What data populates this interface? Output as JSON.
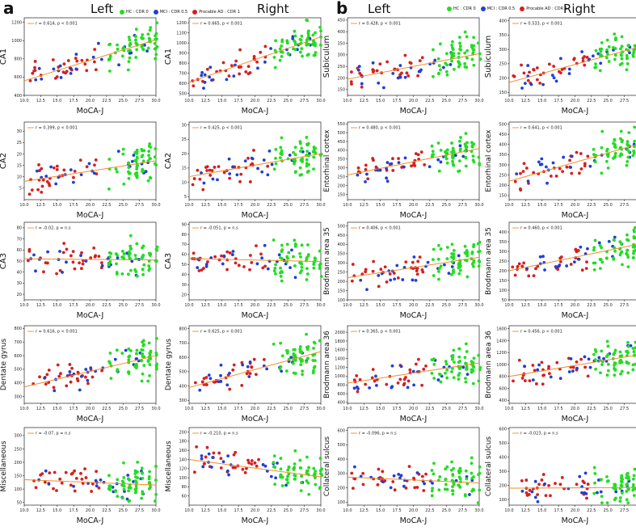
{
  "panel_labels": {
    "a": "a",
    "b": "b"
  },
  "side_labels": {
    "left": "Left",
    "right": "Right"
  },
  "legend": [
    {
      "label": "HC : CDR 0",
      "color": "#22dd22"
    },
    {
      "label": "MCI : CDR 0.5",
      "color": "#1f3fd6"
    },
    {
      "label": "Procable AD : CDR 1",
      "color": "#d61f1f"
    }
  ],
  "colors": {
    "hc": "#22dd22",
    "mci": "#1f3fd6",
    "ad": "#d61f1f",
    "fit": "#f28c28"
  },
  "x_axis": {
    "label": "MoCA-J",
    "ticks": [
      "10.0",
      "12.5",
      "15.0",
      "17.5",
      "20.0",
      "22.5",
      "25.0",
      "27.5",
      "30.0"
    ],
    "range": [
      10,
      30
    ]
  },
  "chart_data": [
    {
      "type": "scatter",
      "panel": "a",
      "side": "Left",
      "region": "CA1",
      "ylabel": "CA1",
      "legend_text": "r = 0.614, p < 0.001",
      "ylim": [
        400,
        1250
      ],
      "yticks": [
        400,
        600,
        800,
        1000,
        1200
      ],
      "fit": [
        [
          10,
          560
        ],
        [
          30,
          1010
        ]
      ],
      "seed": 11
    },
    {
      "type": "scatter",
      "panel": "a",
      "side": "Right",
      "region": "CA1",
      "ylabel": "CA1",
      "legend_text": "r = 0.665, p < 0.001",
      "ylim": [
        480,
        1250
      ],
      "yticks": [
        500,
        600,
        700,
        800,
        900,
        1000,
        1100,
        1200
      ],
      "fit": [
        [
          10,
          610
        ],
        [
          30,
          1060
        ]
      ],
      "seed": 12
    },
    {
      "type": "scatter",
      "panel": "b",
      "side": "Left",
      "region": "Subiculum",
      "ylabel": "Subiculum",
      "legend_text": "r = 0.428, p < 0.001",
      "ylim": [
        125,
        460
      ],
      "yticks": [
        150,
        200,
        250,
        300,
        350,
        400,
        450
      ],
      "fit": [
        [
          10,
          195
        ],
        [
          30,
          305
        ]
      ],
      "seed": 13
    },
    {
      "type": "scatter",
      "panel": "b",
      "side": "Right",
      "region": "Subiculum",
      "ylabel": "Subiculum",
      "legend_text": "r = 0.533, p < 0.001",
      "ylim": [
        140,
        410
      ],
      "yticks": [
        150,
        200,
        250,
        300,
        350,
        400
      ],
      "fit": [
        [
          10,
          185
        ],
        [
          30,
          310
        ]
      ],
      "seed": 14
    },
    {
      "type": "scatter",
      "panel": "a",
      "side": "Left",
      "region": "CA2",
      "ylabel": "CA2",
      "legend_text": "r = 0.399, p < 0.001",
      "ylim": [
        0,
        34
      ],
      "yticks": [
        5,
        10,
        15,
        20,
        25,
        30
      ],
      "fit": [
        [
          10,
          8
        ],
        [
          30,
          17
        ]
      ],
      "seed": 21
    },
    {
      "type": "scatter",
      "panel": "a",
      "side": "Right",
      "region": "CA2",
      "ylabel": "CA2",
      "legend_text": "r = 0.425, p < 0.001",
      "ylim": [
        4,
        31
      ],
      "yticks": [
        5,
        10,
        15,
        20,
        25,
        30
      ],
      "fit": [
        [
          10,
          12
        ],
        [
          30,
          20
        ]
      ],
      "seed": 22
    },
    {
      "type": "scatter",
      "panel": "b",
      "side": "Left",
      "region": "Entorhinal cortex",
      "ylabel": "Entorhinal cortex",
      "legend_text": "r = 0.480, p < 0.001",
      "ylim": [
        120,
        560
      ],
      "yticks": [
        150,
        200,
        250,
        300,
        350,
        400,
        450,
        500,
        550
      ],
      "fit": [
        [
          10,
          260
        ],
        [
          30,
          410
        ]
      ],
      "seed": 23
    },
    {
      "type": "scatter",
      "panel": "b",
      "side": "Right",
      "region": "Entorhinal cortex",
      "ylabel": "Entorhinal cortex",
      "legend_text": "r = 0.641, p < 0.001",
      "ylim": [
        130,
        510
      ],
      "yticks": [
        150,
        200,
        250,
        300,
        350,
        400,
        450,
        500
      ],
      "fit": [
        [
          10,
          220
        ],
        [
          30,
          405
        ]
      ],
      "seed": 24
    },
    {
      "type": "scatter",
      "panel": "a",
      "side": "Left",
      "region": "CA3",
      "ylabel": "CA3",
      "legend_text": "r = -0.02, p = n.s",
      "ylim": [
        15,
        85
      ],
      "yticks": [
        20,
        30,
        40,
        50,
        60,
        70,
        80
      ],
      "fit": [
        [
          10,
          52
        ],
        [
          30,
          51
        ]
      ],
      "seed": 31
    },
    {
      "type": "scatter",
      "panel": "a",
      "side": "Right",
      "region": "CA3",
      "ylabel": "CA3",
      "legend_text": "r = -0.051, p = n.s",
      "ylim": [
        15,
        92
      ],
      "yticks": [
        20,
        30,
        40,
        50,
        60,
        70,
        80,
        90
      ],
      "fit": [
        [
          10,
          56
        ],
        [
          30,
          53
        ]
      ],
      "seed": 32
    },
    {
      "type": "scatter",
      "panel": "b",
      "side": "Left",
      "region": "Brodmann area 35",
      "ylabel": "Brodmann area 35",
      "legend_text": "r = 0.406, p < 0.001",
      "ylim": [
        100,
        520
      ],
      "yticks": [
        100,
        150,
        200,
        250,
        300,
        350,
        400,
        450,
        500
      ],
      "fit": [
        [
          10,
          220
        ],
        [
          30,
          330
        ]
      ],
      "seed": 33
    },
    {
      "type": "scatter",
      "panel": "b",
      "side": "Right",
      "region": "Brodmann area 35",
      "ylabel": "Brodmann area 35",
      "legend_text": "r = 0.460, p < 0.001",
      "ylim": [
        50,
        450
      ],
      "yticks": [
        50,
        100,
        150,
        200,
        250,
        300,
        350,
        400
      ],
      "fit": [
        [
          10,
          200
        ],
        [
          30,
          340
        ]
      ],
      "seed": 34
    },
    {
      "type": "scatter",
      "panel": "a",
      "side": "Left",
      "region": "Dentate gyrus",
      "ylabel": "Dentate gyrus",
      "legend_text": "r = 0.616, p < 0.001",
      "ylim": [
        250,
        820
      ],
      "yticks": [
        300,
        400,
        500,
        600,
        700,
        800
      ],
      "fit": [
        [
          10,
          370
        ],
        [
          30,
          600
        ]
      ],
      "seed": 41
    },
    {
      "type": "scatter",
      "panel": "a",
      "side": "Right",
      "region": "Dentate gyrus",
      "ylabel": "Dentate gyrus",
      "legend_text": "r = 0.625, p < 0.001",
      "ylim": [
        280,
        820
      ],
      "yticks": [
        300,
        400,
        500,
        600,
        700,
        800
      ],
      "fit": [
        [
          10,
          390
        ],
        [
          30,
          640
        ]
      ],
      "seed": 42
    },
    {
      "type": "scatter",
      "panel": "b",
      "side": "Left",
      "region": "Brodmann area 36",
      "ylabel": "Brodmann area 36",
      "legend_text": "r = 0.365, p < 0.001",
      "ylim": [
        380,
        2150
      ],
      "yticks": [
        400,
        600,
        800,
        1000,
        1200,
        1400,
        1600,
        1800,
        2000
      ],
      "fit": [
        [
          10,
          840
        ],
        [
          30,
          1300
        ]
      ],
      "seed": 43
    },
    {
      "type": "scatter",
      "panel": "b",
      "side": "Right",
      "region": "Brodmann area 36",
      "ylabel": "Brodmann area 36",
      "legend_text": "r = 0.456, p < 0.001",
      "ylim": [
        350,
        1650
      ],
      "yticks": [
        400,
        600,
        800,
        1000,
        1200,
        1400,
        1600
      ],
      "fit": [
        [
          10,
          800
        ],
        [
          30,
          1170
        ]
      ],
      "seed": 44
    },
    {
      "type": "scatter",
      "panel": "a",
      "side": "Left",
      "region": "Miscellaneous",
      "ylabel": "Miscellaneous",
      "legend_text": "r = -0.07, p = n.s",
      "ylim": [
        40,
        330
      ],
      "yticks": [
        50,
        100,
        150,
        200,
        250,
        300
      ],
      "fit": [
        [
          10,
          135
        ],
        [
          30,
          115
        ]
      ],
      "seed": 51
    },
    {
      "type": "scatter",
      "panel": "a",
      "side": "Right",
      "region": "Miscellaneous",
      "ylabel": "Miscellaneous",
      "legend_text": "r = -0.210, p = n.s",
      "ylim": [
        40,
        210
      ],
      "yticks": [
        60,
        80,
        100,
        120,
        140,
        160,
        180,
        200
      ],
      "fit": [
        [
          10,
          140
        ],
        [
          30,
          102
        ]
      ],
      "seed": 52
    },
    {
      "type": "scatter",
      "panel": "b",
      "side": "Left",
      "region": "Collateral sulcus",
      "ylabel": "Collateral sulcus",
      "legend_text": "r = -0.096, p = n.s",
      "ylim": [
        80,
        620
      ],
      "yticks": [
        100,
        200,
        300,
        400,
        500,
        600
      ],
      "fit": [
        [
          10,
          275
        ],
        [
          30,
          235
        ]
      ],
      "seed": 53
    },
    {
      "type": "scatter",
      "panel": "b",
      "side": "Right",
      "region": "Collateral sulcus",
      "ylabel": "Collateral sulcus",
      "legend_text": "r = -0.023, p = n.s",
      "ylim": [
        60,
        610
      ],
      "yticks": [
        100,
        200,
        300,
        400,
        500,
        600
      ],
      "fit": [
        [
          10,
          180
        ],
        [
          30,
          185
        ]
      ],
      "seed": 54
    }
  ]
}
